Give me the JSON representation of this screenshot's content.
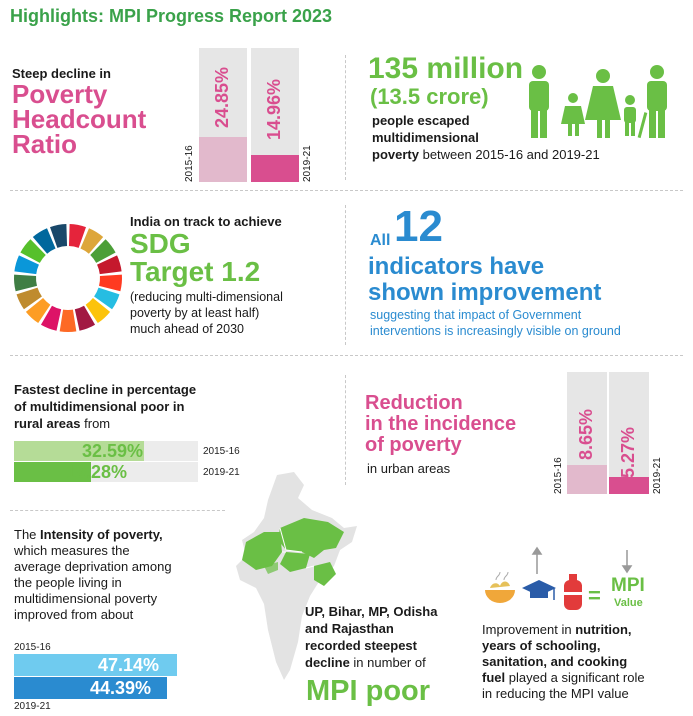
{
  "title": "Highlights: MPI Progress Report 2023",
  "headcount": {
    "lead": "Steep decline in",
    "heading": [
      "Poverty",
      "Headcount",
      "Ratio"
    ],
    "bar1": {
      "year": "2015-16",
      "value": "24.85%",
      "pct": 24.85
    },
    "bar2": {
      "year": "2019-21",
      "value": "14.96%",
      "pct": 14.96
    }
  },
  "escaped": {
    "big": "135 million",
    "sub": "(13.5 crore)",
    "text_bold1": "people escaped",
    "text_bold2": "multidimensional",
    "text_bold3": "poverty",
    "text_rest": "between 2015-16 and 2019-21"
  },
  "sdg": {
    "lead": "India on track to achieve",
    "big1": "SDG",
    "big2": "Target 1.2",
    "text1": "(reducing multi-dimensional",
    "text2": "poverty by at least half)",
    "text3": "much ahead of 2030",
    "wheel_colors": [
      "#e5243b",
      "#dda63a",
      "#4c9f38",
      "#c5192d",
      "#ff3a21",
      "#26bde2",
      "#fcc30b",
      "#a21942",
      "#fd6925",
      "#dd1367",
      "#fd9d24",
      "#bf8b2e",
      "#3f7e44",
      "#0a97d9",
      "#56c02b",
      "#00689d",
      "#19486a"
    ]
  },
  "indicators": {
    "all": "All",
    "num": "12",
    "line1": "indicators have",
    "line2": "shown improvement",
    "sub1": "suggesting that impact of Government",
    "sub2": "interventions is increasingly visible on ground"
  },
  "rural": {
    "line1": "Fastest decline in percentage",
    "line2": "of multidimensional poor in",
    "line3": "rural areas",
    "from": "from",
    "bar1": {
      "value": "32.59%",
      "year": "2015-16",
      "pct": 32.59
    },
    "bar2": {
      "value": "19.28%",
      "year": "2019-21",
      "pct": 19.28
    }
  },
  "urban": {
    "line1": "Reduction",
    "line2": "in the incidence",
    "line3": "of poverty",
    "sub": "in urban areas",
    "bar1": {
      "year": "2015-16",
      "value": "8.65%",
      "pct": 8.65
    },
    "bar2": {
      "year": "2019-21",
      "value": "5.27%",
      "pct": 5.27
    }
  },
  "intensity": {
    "pre": "The",
    "bold": "Intensity of poverty,",
    "l1": "which measures the",
    "l2": "average deprivation among",
    "l3": "the people living in",
    "l4": "multidimensional poverty",
    "l5": "improved from about",
    "bar1": {
      "year": "2015-16",
      "value": "47.14%",
      "pct": 47.14
    },
    "bar2": {
      "year": "2019-21",
      "value": "44.39%",
      "pct": 44.39
    }
  },
  "states": {
    "l1": "UP, Bihar, MP, Odisha",
    "l2": "and Rajasthan",
    "l3": "recorded steepest",
    "l4bold": "decline",
    "l4rest": "in number of",
    "big": "MPI poor"
  },
  "mpi": {
    "eq": "=",
    "mpi": "MPI",
    "value": "Value",
    "t1": "Improvement in",
    "t1b": "nutrition,",
    "t2": "years of schooling,",
    "t3": "sanitation, and cooking",
    "t4b": "fuel",
    "t4": "played a significant role",
    "t5": "in reducing the MPI value"
  },
  "colors": {
    "green": "#6abf45",
    "pink": "#d94e8f",
    "blue": "#2a8bd0",
    "lightpink": "#e2b9cc",
    "lightgreen": "#b5dc97",
    "lightblue": "#6fcbef",
    "grey": "#e6e6e6"
  }
}
